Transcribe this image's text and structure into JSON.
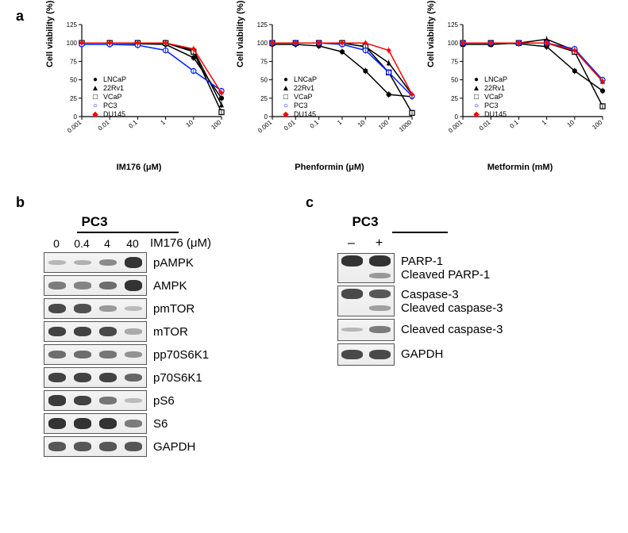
{
  "panel_labels": {
    "a": "a",
    "b": "b",
    "c": "c"
  },
  "charts": {
    "y_label": "Cell viability (%)",
    "y_lim": [
      0,
      125
    ],
    "y_ticks": [
      0,
      25,
      50,
      75,
      100,
      125
    ],
    "series": [
      {
        "name": "LNCaP",
        "marker": "●",
        "color": "#000000"
      },
      {
        "name": "22Rv1",
        "marker": "▲",
        "color": "#000000"
      },
      {
        "name": "VCaP",
        "marker": "□",
        "color": "#000000"
      },
      {
        "name": "PC3",
        "marker": "○",
        "color": "#0022ff"
      },
      {
        "name": "DU145",
        "marker": "◆",
        "color": "#ff0000"
      }
    ],
    "plots": [
      {
        "x_label": "IM176 (μM)",
        "x_ticks": [
          "0.001",
          "0.01",
          "0.1",
          "1",
          "10",
          "100"
        ],
        "curves": {
          "LNCaP": [
            100,
            100,
            99,
            98,
            80,
            25
          ],
          "22Rv1": [
            100,
            100,
            100,
            100,
            90,
            16
          ],
          "VCaP": [
            100,
            100,
            100,
            100,
            88,
            6
          ],
          "PC3": [
            98,
            98,
            97,
            90,
            62,
            35
          ],
          "DU145": [
            100,
            100,
            100,
            100,
            92,
            32
          ]
        }
      },
      {
        "x_label": "Phenformin (μM)",
        "x_ticks": [
          "0.001",
          "0.01",
          "0.1",
          "1",
          "10",
          "100",
          "1000"
        ],
        "curves": {
          "LNCaP": [
            98,
            98,
            96,
            88,
            62,
            30,
            27
          ],
          "22Rv1": [
            100,
            100,
            100,
            100,
            95,
            73,
            30
          ],
          "VCaP": [
            100,
            100,
            100,
            100,
            95,
            60,
            5
          ],
          "PC3": [
            100,
            100,
            100,
            98,
            90,
            60,
            28
          ],
          "DU145": [
            100,
            100,
            100,
            100,
            100,
            90,
            30
          ]
        }
      },
      {
        "x_label": "Metformin (mM)",
        "x_ticks": [
          "0.001",
          "0.01",
          "0.1",
          "1",
          "10",
          "100"
        ],
        "curves": {
          "LNCaP": [
            100,
            100,
            99,
            95,
            62,
            35
          ],
          "22Rv1": [
            98,
            98,
            100,
            105,
            90,
            48
          ],
          "VCaP": [
            100,
            100,
            100,
            100,
            88,
            14
          ],
          "PC3": [
            100,
            100,
            100,
            100,
            92,
            50
          ],
          "DU145": [
            100,
            100,
            100,
            100,
            90,
            48
          ]
        }
      }
    ],
    "line_width": 1.5,
    "marker_size": 4,
    "background_color": "#ffffff",
    "axis_color": "#000000",
    "tick_fontsize": 8,
    "label_fontsize": 11
  },
  "panel_b": {
    "cell_line": "PC3",
    "doses": [
      "0",
      "0.4",
      "4",
      "40"
    ],
    "dose_unit": "IM176 (μM)",
    "blot_width": 128,
    "blot_height": 24,
    "rows": [
      {
        "label": "pAMPK",
        "bands": [
          0.05,
          0.1,
          0.35,
          0.95
        ]
      },
      {
        "label": "AMPK",
        "bands": [
          0.45,
          0.4,
          0.55,
          0.95
        ]
      },
      {
        "label": "pmTOR",
        "bands": [
          0.8,
          0.75,
          0.25,
          0.02
        ]
      },
      {
        "label": "mTOR",
        "bands": [
          0.85,
          0.85,
          0.8,
          0.15
        ]
      },
      {
        "label": "pp70S6K1",
        "bands": [
          0.55,
          0.55,
          0.5,
          0.3
        ]
      },
      {
        "label": "p70S6K1",
        "bands": [
          0.85,
          0.85,
          0.85,
          0.6
        ]
      },
      {
        "label": "pS6",
        "bands": [
          0.9,
          0.85,
          0.5,
          0.02
        ]
      },
      {
        "label": "S6",
        "bands": [
          0.95,
          0.95,
          0.95,
          0.45
        ]
      },
      {
        "label": "GAPDH",
        "bands": [
          0.7,
          0.7,
          0.7,
          0.7
        ]
      }
    ]
  },
  "panel_c": {
    "cell_line": "PC3",
    "conditions": [
      "–",
      "+"
    ],
    "blot_width": 70,
    "blot_height": 26,
    "rows": [
      {
        "labels": [
          "PARP-1",
          "Cleaved PARP-1"
        ],
        "bands": [
          [
            0.95,
            0.95
          ],
          [
            0.0,
            0.25
          ]
        ],
        "double": true
      },
      {
        "labels": [
          "Caspase-3",
          "Cleaved caspase-3"
        ],
        "bands": [
          [
            0.8,
            0.7
          ],
          [
            0.0,
            0.2
          ]
        ],
        "double": true
      },
      {
        "labels": [
          "Cleaved caspase-3"
        ],
        "bands": [
          [
            0.05,
            0.45
          ]
        ],
        "double": false
      },
      {
        "labels": [
          "GAPDH"
        ],
        "bands": [
          [
            0.8,
            0.8
          ]
        ],
        "double": false
      }
    ]
  }
}
